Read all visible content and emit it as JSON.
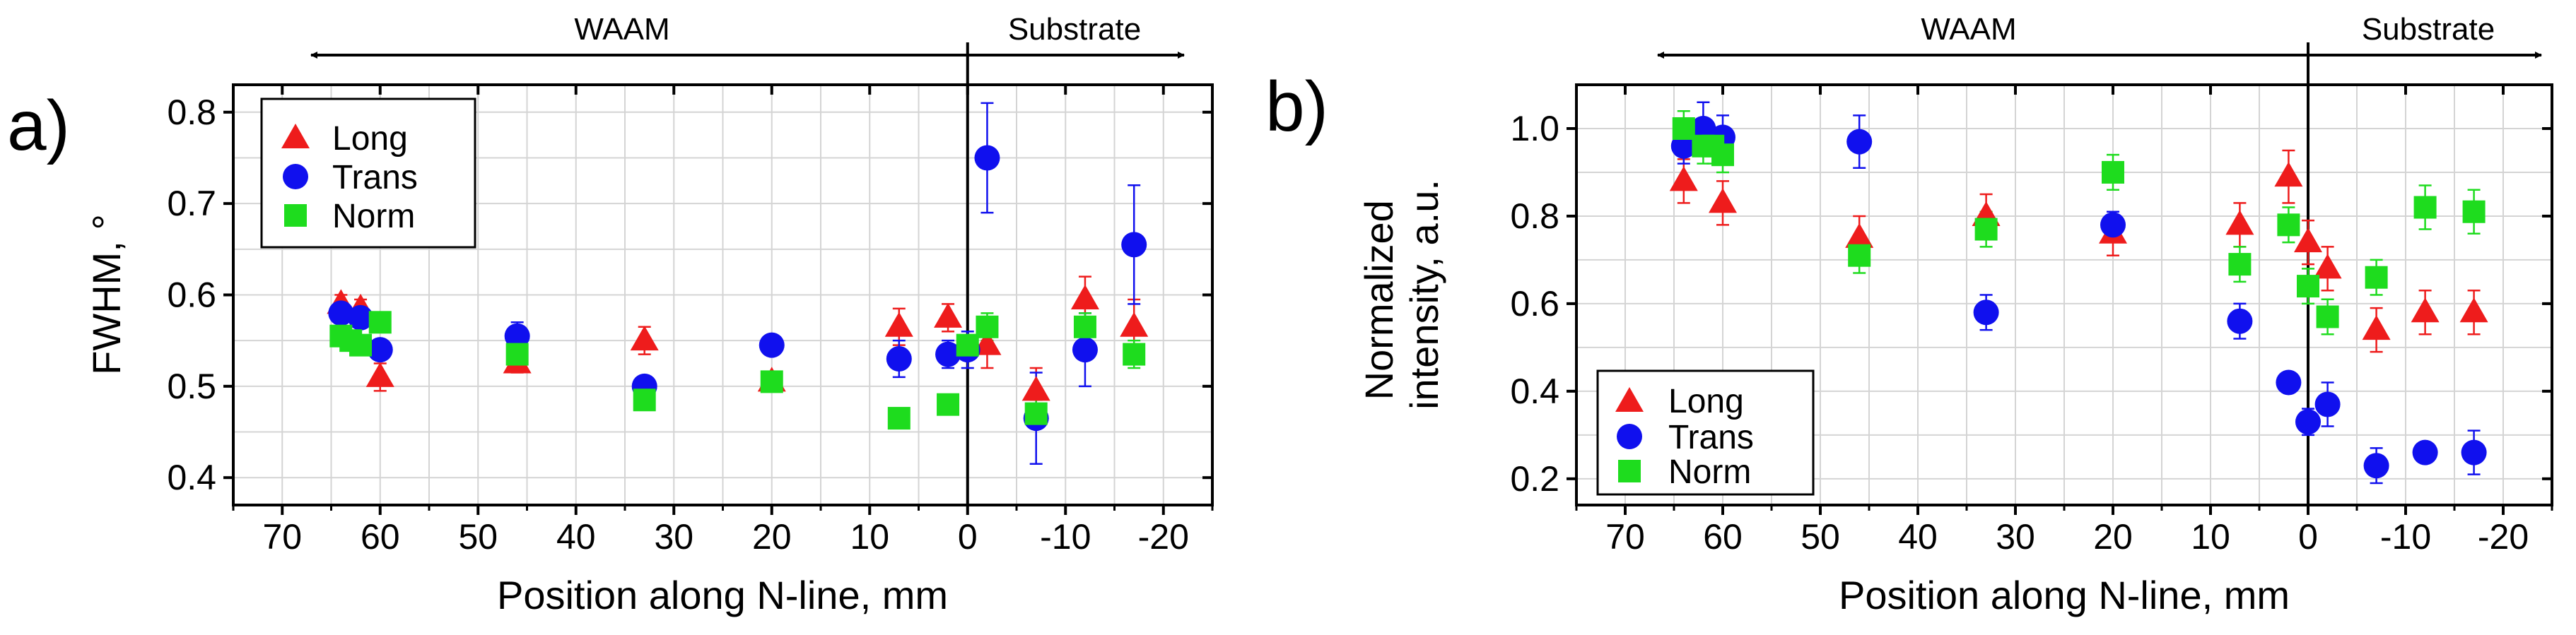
{
  "colors": {
    "long": "#ee1c1c",
    "trans": "#1010ee",
    "norm": "#1edc1e",
    "grid": "#d4d4d4",
    "axis": "#000000"
  },
  "chart_data": [
    {
      "type": "scatter",
      "panel_label": "a)",
      "title": "",
      "xlabel": "Position along N-line, mm",
      "ylabel": "FWHM, °",
      "xlim": [
        75,
        -25
      ],
      "ylim": [
        0.37,
        0.83
      ],
      "x_ticks": [
        70,
        60,
        50,
        40,
        30,
        20,
        10,
        0,
        -10,
        -20
      ],
      "x_tick_labels": [
        "70",
        "60",
        "50",
        "40",
        "30",
        "20",
        "10",
        "0",
        "-10",
        "-20"
      ],
      "y_ticks": [
        0.4,
        0.5,
        0.6,
        0.7,
        0.8
      ],
      "y_tick_labels": [
        "0.4",
        "0.5",
        "0.6",
        "0.7",
        "0.8"
      ],
      "grid": true,
      "interface_x": 0,
      "region_left_label": "WAAM",
      "region_right_label": "Substrate",
      "legend_position": "top-left",
      "series": [
        {
          "name": "Long",
          "marker": "triangle",
          "color": "#ee1c1c",
          "x": [
            64,
            62,
            60,
            46,
            33,
            20,
            7,
            2,
            -2,
            -7,
            -12,
            -17
          ],
          "y": [
            0.59,
            0.585,
            0.51,
            0.525,
            0.55,
            0.505,
            0.565,
            0.575,
            0.545,
            0.495,
            0.595,
            0.565
          ],
          "err": [
            0.01,
            0.01,
            0.015,
            0.01,
            0.015,
            0.01,
            0.02,
            0.015,
            0.025,
            0.025,
            0.025,
            0.03
          ]
        },
        {
          "name": "Trans",
          "marker": "circle",
          "color": "#1010ee",
          "x": [
            64,
            62,
            60,
            46,
            33,
            20,
            7,
            2,
            0,
            -2,
            -7,
            -12,
            -17
          ],
          "y": [
            0.58,
            0.575,
            0.54,
            0.555,
            0.5,
            0.545,
            0.53,
            0.535,
            0.54,
            0.75,
            0.465,
            0.54,
            0.655
          ],
          "err": [
            0.01,
            0.01,
            0.01,
            0.015,
            0.01,
            0.01,
            0.02,
            0.015,
            0.02,
            0.06,
            0.05,
            0.04,
            0.065
          ]
        },
        {
          "name": "Norm",
          "marker": "square",
          "color": "#1edc1e",
          "x": [
            64,
            63,
            62,
            60,
            46,
            33,
            20,
            7,
            2,
            0,
            -2,
            -7,
            -12,
            -17
          ],
          "y": [
            0.555,
            0.55,
            0.545,
            0.57,
            0.535,
            0.485,
            0.505,
            0.465,
            0.48,
            0.545,
            0.565,
            0.47,
            0.565,
            0.535
          ],
          "err": [
            0.01,
            0.01,
            0.01,
            0.01,
            0.01,
            0.01,
            0.01,
            0.01,
            0.01,
            0.01,
            0.015,
            0.015,
            0.015,
            0.015
          ]
        }
      ]
    },
    {
      "type": "scatter",
      "panel_label": "b)",
      "title": "",
      "xlabel": "Position along N-line, mm",
      "ylabel": "Normalized intensity, a.u.",
      "ylabel_lines": [
        "Normalized",
        "intensity, a.u."
      ],
      "xlim": [
        75,
        -25
      ],
      "ylim": [
        0.14,
        1.1
      ],
      "x_ticks": [
        70,
        60,
        50,
        40,
        30,
        20,
        10,
        0,
        -10,
        -20
      ],
      "x_tick_labels": [
        "70",
        "60",
        "50",
        "40",
        "30",
        "20",
        "10",
        "0",
        "-10",
        "-20"
      ],
      "y_ticks": [
        0.2,
        0.4,
        0.6,
        0.8,
        1.0
      ],
      "y_tick_labels": [
        "0.2",
        "0.4",
        "0.6",
        "0.8",
        "1.0"
      ],
      "grid": true,
      "interface_x": 0,
      "region_left_label": "WAAM",
      "region_right_label": "Substrate",
      "legend_position": "bottom-left",
      "series": [
        {
          "name": "Long",
          "marker": "triangle",
          "color": "#ee1c1c",
          "x": [
            64,
            60,
            46,
            33,
            20,
            7,
            2,
            0,
            -2,
            -7,
            -12,
            -17
          ],
          "y": [
            0.88,
            0.83,
            0.75,
            0.8,
            0.76,
            0.78,
            0.89,
            0.74,
            0.68,
            0.54,
            0.58,
            0.58
          ],
          "err": [
            0.05,
            0.05,
            0.05,
            0.05,
            0.05,
            0.05,
            0.06,
            0.05,
            0.05,
            0.05,
            0.05,
            0.05
          ]
        },
        {
          "name": "Trans",
          "marker": "circle",
          "color": "#1010ee",
          "x": [
            64,
            62,
            60,
            46,
            33,
            20,
            7,
            2,
            0,
            -2,
            -7,
            -12,
            -17
          ],
          "y": [
            0.96,
            1.0,
            0.98,
            0.97,
            0.58,
            0.78,
            0.56,
            0.42,
            0.33,
            0.37,
            0.23,
            0.26,
            0.26
          ],
          "err": [
            0.04,
            0.06,
            0.05,
            0.06,
            0.04,
            0.03,
            0.04,
            0.02,
            0.03,
            0.05,
            0.04,
            0.02,
            0.05
          ]
        },
        {
          "name": "Norm",
          "marker": "square",
          "color": "#1edc1e",
          "x": [
            64,
            62,
            61,
            60,
            46,
            33,
            20,
            7,
            2,
            0,
            -2,
            -7,
            -12,
            -17
          ],
          "y": [
            1.0,
            0.96,
            0.96,
            0.94,
            0.71,
            0.77,
            0.9,
            0.69,
            0.78,
            0.64,
            0.57,
            0.66,
            0.82,
            0.81
          ],
          "err": [
            0.04,
            0.04,
            0.04,
            0.04,
            0.04,
            0.04,
            0.04,
            0.04,
            0.04,
            0.04,
            0.04,
            0.04,
            0.05,
            0.05
          ]
        }
      ]
    }
  ]
}
